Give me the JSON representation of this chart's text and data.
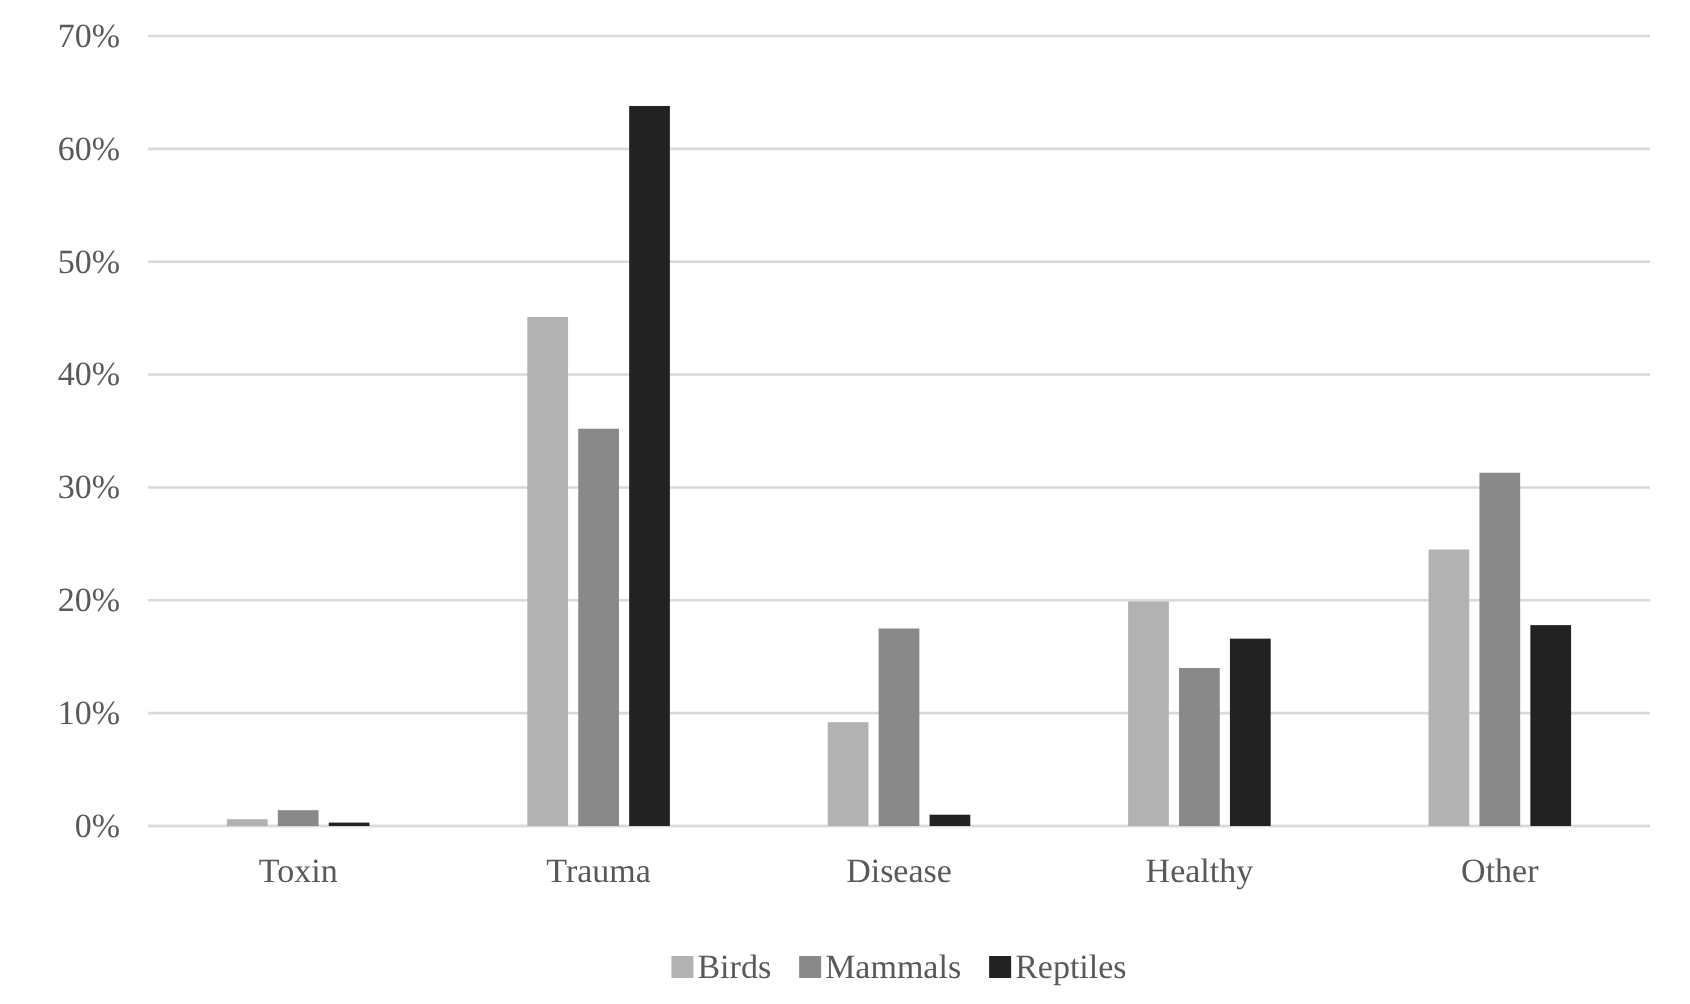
{
  "chart_data": {
    "type": "bar",
    "categories": [
      "Toxin",
      "Trauma",
      "Disease",
      "Healthy",
      "Other"
    ],
    "series": [
      {
        "name": "Birds",
        "color": "#b2b2b2",
        "values": [
          0.6,
          45.1,
          9.2,
          19.9,
          24.5
        ]
      },
      {
        "name": "Mammals",
        "color": "#898989",
        "values": [
          1.4,
          35.2,
          17.5,
          14.0,
          31.3
        ]
      },
      {
        "name": "Reptiles",
        "color": "#222222",
        "values": [
          0.3,
          63.8,
          1.0,
          16.6,
          17.8
        ]
      }
    ],
    "ylim": [
      0,
      70
    ],
    "yticks": [
      {
        "value": 0,
        "label": "0%"
      },
      {
        "value": 10,
        "label": "10%"
      },
      {
        "value": 20,
        "label": "20%"
      },
      {
        "value": 30,
        "label": "30%"
      },
      {
        "value": 40,
        "label": "40%"
      },
      {
        "value": 50,
        "label": "50%"
      },
      {
        "value": 60,
        "label": "60%"
      },
      {
        "value": 70,
        "label": "70%"
      }
    ],
    "grid": "y",
    "legend": "bottom"
  }
}
